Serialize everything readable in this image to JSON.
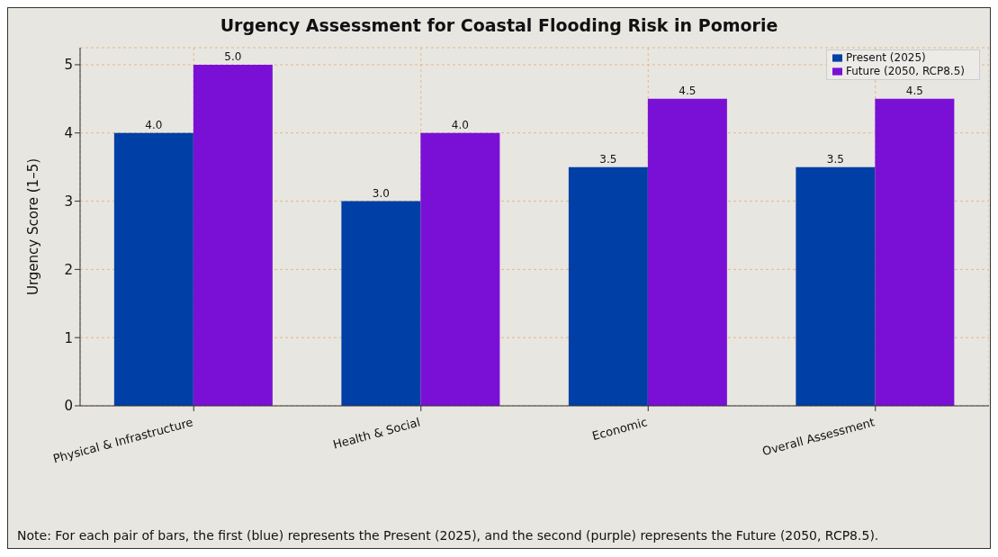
{
  "chart_data": {
    "type": "bar",
    "title": "Urgency Assessment for Coastal Flooding Risk in Pomorie",
    "ylabel": "Urgency Score (1–5)",
    "categories": [
      "Physical & Infrastructure",
      "Health & Social",
      "Economic",
      "Overall Assessment"
    ],
    "series": [
      {
        "name": "Present (2025)",
        "color": "#003fa5",
        "values": [
          4,
          3,
          3.5,
          3.5
        ],
        "value_labels": [
          "4.0",
          "3.0",
          "3.5",
          "3.5"
        ]
      },
      {
        "name": "Future (2050, RCP8.5)",
        "color": "#7a10d6",
        "values": [
          5,
          4,
          4.5,
          4.5
        ],
        "value_labels": [
          "5.0",
          "4.0",
          "4.5",
          "4.5"
        ]
      }
    ],
    "ylim": [
      0,
      5.25
    ],
    "yticks": [
      0,
      1,
      2,
      3,
      4,
      5
    ],
    "grid": true,
    "legend": "top right",
    "annotations": [
      "Note: For each pair of bars, the first (blue) represents the Present (2025), and the second (purple) represents the Future (2050, RCP8.5)."
    ]
  }
}
